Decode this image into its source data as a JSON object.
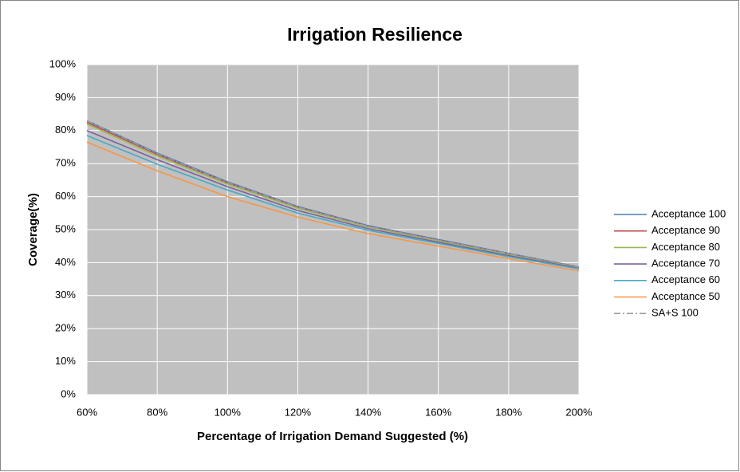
{
  "chart_data": {
    "type": "line",
    "title": "Irrigation Resilience",
    "x_label": "Percentage of Irrigation Demand Suggested (%)",
    "y_label": "Coverage(%)",
    "x": [
      60,
      80,
      100,
      120,
      140,
      160,
      180,
      200
    ],
    "xlim": [
      60,
      200
    ],
    "xticks": [
      {
        "value": 60,
        "label": "60%"
      },
      {
        "value": 80,
        "label": "80%"
      },
      {
        "value": 100,
        "label": "100%"
      },
      {
        "value": 120,
        "label": "120%"
      },
      {
        "value": 140,
        "label": "140%"
      },
      {
        "value": 160,
        "label": "160%"
      },
      {
        "value": 180,
        "label": "180%"
      },
      {
        "value": 200,
        "label": "200%"
      }
    ],
    "ylim": [
      0,
      100
    ],
    "yticks": [
      {
        "value": 0,
        "label": "0%"
      },
      {
        "value": 10,
        "label": "10%"
      },
      {
        "value": 20,
        "label": "20%"
      },
      {
        "value": 30,
        "label": "30%"
      },
      {
        "value": 40,
        "label": "40%"
      },
      {
        "value": 50,
        "label": "50%"
      },
      {
        "value": 60,
        "label": "60%"
      },
      {
        "value": 70,
        "label": "70%"
      },
      {
        "value": 80,
        "label": "80%"
      },
      {
        "value": 90,
        "label": "90%"
      },
      {
        "value": 100,
        "label": "100%"
      }
    ],
    "grid": true,
    "legend": "right",
    "series": [
      {
        "name": "Acceptance 100",
        "color": "#4a7ebb",
        "values": [
          83,
          73.2,
          64.5,
          57,
          51.2,
          47,
          42.8,
          38.7
        ]
      },
      {
        "name": "Acceptance 90",
        "color": "#be4b48",
        "values": [
          82.5,
          72.8,
          64.2,
          56.8,
          51,
          46.8,
          42.6,
          38.6
        ]
      },
      {
        "name": "Acceptance 80",
        "color": "#98b954",
        "values": [
          82,
          72.3,
          63.8,
          56.5,
          50.8,
          46.6,
          42.4,
          38.5
        ]
      },
      {
        "name": "Acceptance 70",
        "color": "#7d60a0",
        "values": [
          80,
          71.2,
          63,
          55.8,
          50.3,
          46.2,
          42.1,
          38.3
        ]
      },
      {
        "name": "Acceptance 60",
        "color": "#46aac5",
        "values": [
          78.5,
          69.8,
          62,
          55,
          49.8,
          45.8,
          41.8,
          38.1
        ]
      },
      {
        "name": "Acceptance 50",
        "color": "#f79646",
        "values": [
          76.5,
          67.8,
          60,
          53.8,
          48.8,
          45,
          41.2,
          37.5
        ]
      },
      {
        "name": "SA+S 100",
        "color": "#9a9a9a",
        "dash": "8 3 2 3",
        "values": [
          83,
          73,
          64.3,
          56.8,
          51,
          46.8,
          42.7,
          38.6
        ]
      }
    ]
  }
}
